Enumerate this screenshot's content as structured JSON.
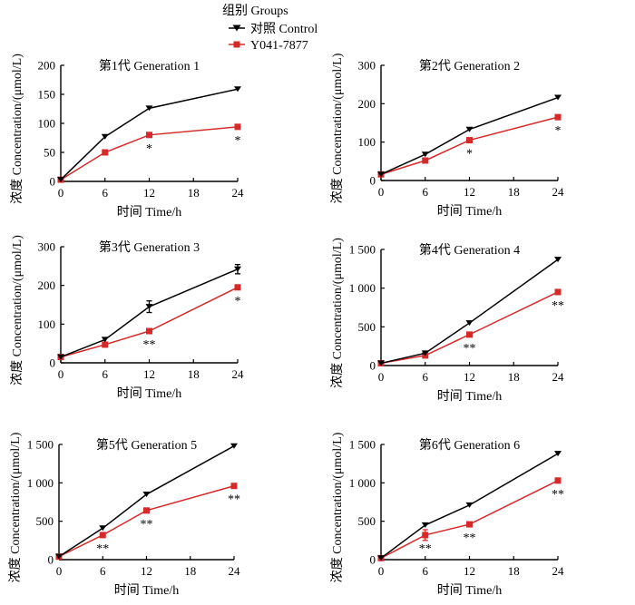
{
  "legend": {
    "title": "组别 Groups",
    "items": [
      {
        "label": "对照  Control",
        "color": "#000000",
        "marker": "triangle-down"
      },
      {
        "label": "Y041-7877",
        "color": "#d62a2a",
        "marker": "square"
      }
    ]
  },
  "chart_data": [
    {
      "type": "line",
      "title": "第1代  Generation 1",
      "xlabel": "时间  Time/h",
      "ylabel": "浓度  Concentration/(μmol/L)",
      "x": [
        0,
        6,
        12,
        24
      ],
      "xticks": [
        "0",
        "6",
        "12",
        "18",
        "24"
      ],
      "xlim": [
        0,
        24
      ],
      "yticks": [
        "0",
        "50",
        "100",
        "150",
        "200"
      ],
      "ylim": [
        0,
        200
      ],
      "series": [
        {
          "name": "对照  Control",
          "values": [
            3,
            77,
            126,
            159
          ]
        },
        {
          "name": "Y041-7877",
          "values": [
            3,
            50,
            80,
            94
          ],
          "significance": [
            "",
            "",
            "*",
            "*"
          ]
        }
      ]
    },
    {
      "type": "line",
      "title": "第2代  Generation 2",
      "xlabel": "时间  Time/h",
      "ylabel": "浓度  Concentration/(μmol/L)",
      "x": [
        0,
        6,
        12,
        24
      ],
      "xticks": [
        "0",
        "6",
        "12",
        "18",
        "24"
      ],
      "xlim": [
        0,
        24
      ],
      "yticks": [
        "0",
        "100",
        "200",
        "300"
      ],
      "ylim": [
        0,
        300
      ],
      "series": [
        {
          "name": "对照  Control",
          "values": [
            16,
            68,
            133,
            216
          ]
        },
        {
          "name": "Y041-7877",
          "values": [
            16,
            52,
            105,
            165
          ],
          "significance": [
            "",
            "",
            "*",
            "*"
          ]
        }
      ]
    },
    {
      "type": "line",
      "title": "第3代  Generation 3",
      "xlabel": "时间  Time/h",
      "ylabel": "浓度  Concentration/(μmol/L)",
      "x": [
        0,
        6,
        12,
        24
      ],
      "xticks": [
        "0",
        "6",
        "12",
        "18",
        "24"
      ],
      "xlim": [
        0,
        24
      ],
      "yticks": [
        "0",
        "100",
        "200",
        "300"
      ],
      "ylim": [
        0,
        300
      ],
      "series": [
        {
          "name": "对照  Control",
          "values": [
            15,
            60,
            145,
            242
          ],
          "errors": [
            0,
            0,
            15,
            12
          ]
        },
        {
          "name": "Y041-7877",
          "values": [
            15,
            47,
            82,
            195
          ],
          "significance": [
            "",
            "",
            "**",
            "*"
          ]
        }
      ]
    },
    {
      "type": "line",
      "title": "第4代  Generation 4",
      "xlabel": "时间  Time/h",
      "ylabel": "浓度  Concentration/(μmol/L)",
      "x": [
        0,
        6,
        12,
        24
      ],
      "xticks": [
        "0",
        "6",
        "12",
        "18",
        "24"
      ],
      "xlim": [
        0,
        24
      ],
      "yticks": [
        "0",
        "500",
        "1 000",
        "1 500"
      ],
      "ylim": [
        0,
        1500
      ],
      "series": [
        {
          "name": "对照  Control",
          "values": [
            30,
            160,
            550,
            1370
          ]
        },
        {
          "name": "Y041-7877",
          "values": [
            30,
            130,
            400,
            950
          ],
          "significance": [
            "",
            "",
            "**",
            "**"
          ]
        }
      ]
    },
    {
      "type": "line",
      "title": "第5代  Generation 5",
      "xlabel": "时间  Time/h",
      "ylabel": "浓度  Concentration/(μmol/L)",
      "x": [
        0,
        6,
        12,
        24
      ],
      "xticks": [
        "0",
        "6",
        "12",
        "18",
        "24"
      ],
      "xlim": [
        0,
        24
      ],
      "yticks": [
        "0",
        "500",
        "1 000",
        "1 500"
      ],
      "ylim": [
        0,
        1500
      ],
      "series": [
        {
          "name": "对照  Control",
          "values": [
            40,
            410,
            850,
            1480
          ]
        },
        {
          "name": "Y041-7877",
          "values": [
            40,
            320,
            640,
            960
          ],
          "significance": [
            "",
            "**",
            "**",
            "**"
          ]
        }
      ]
    },
    {
      "type": "line",
      "title": "第6代  Generation 6",
      "xlabel": "时间  Time/h",
      "ylabel": "浓度  Concentration/(μmol/L)",
      "x": [
        0,
        6,
        12,
        24
      ],
      "xticks": [
        "0",
        "6",
        "12",
        "18",
        "24"
      ],
      "xlim": [
        0,
        24
      ],
      "yticks": [
        "0",
        "500",
        "1 000",
        "1 500"
      ],
      "ylim": [
        0,
        1500
      ],
      "series": [
        {
          "name": "对照  Control",
          "values": [
            20,
            450,
            710,
            1380
          ]
        },
        {
          "name": "Y041-7877",
          "values": [
            20,
            320,
            460,
            1030
          ],
          "errors": [
            0,
            70,
            0,
            0
          ],
          "significance": [
            "",
            "**",
            "**",
            "**"
          ]
        }
      ]
    }
  ]
}
